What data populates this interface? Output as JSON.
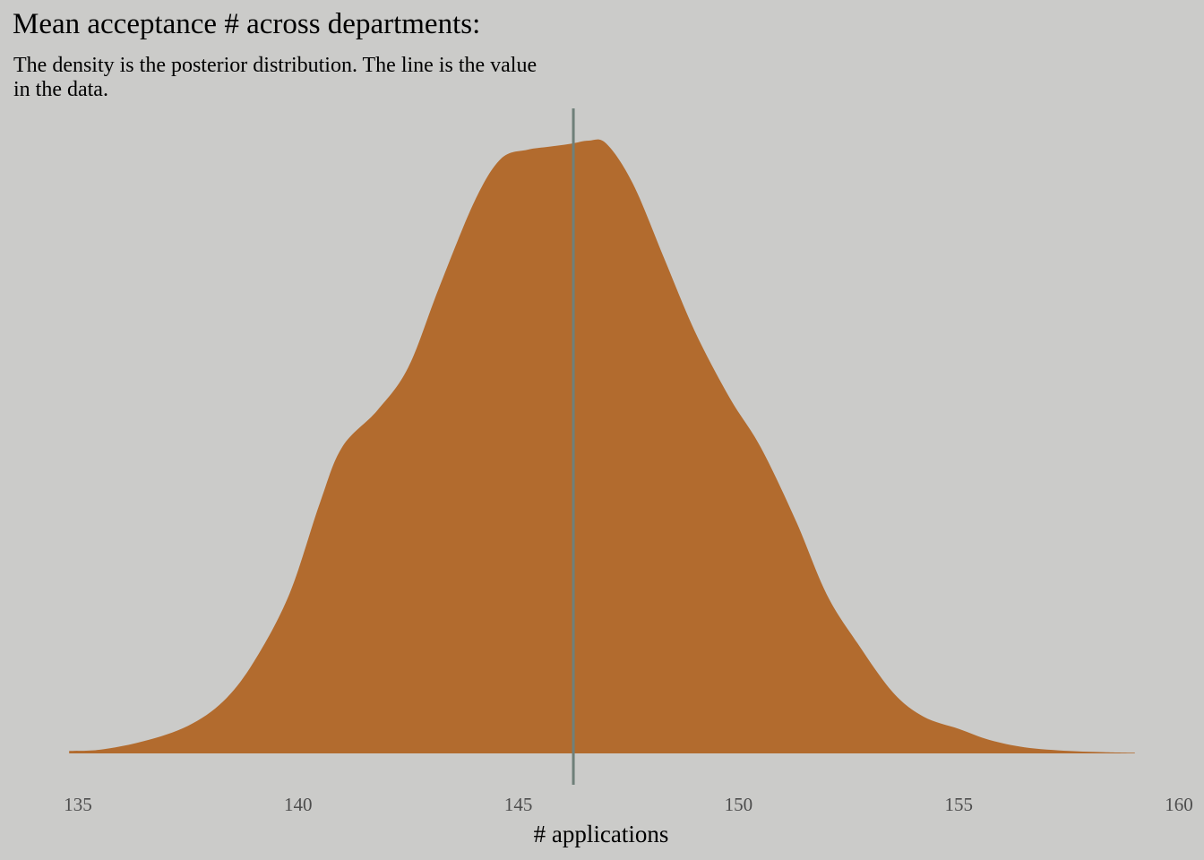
{
  "chart_data": {
    "type": "area",
    "title": "Mean acceptance # across departments:",
    "subtitle": "The density is the posterior distribution. The line is the value in the data.",
    "xlabel": "# applications",
    "ylabel": "",
    "xlim": [
      135,
      160
    ],
    "x_ticks": [
      135,
      140,
      145,
      150,
      155,
      160
    ],
    "x_tick_labels": [
      "135",
      "140",
      "145",
      "150",
      "155",
      "160"
    ],
    "grid": false,
    "density": {
      "x": [
        134.8,
        135.5,
        136.5,
        137.5,
        138.3,
        139.0,
        139.8,
        140.5,
        141.0,
        141.8,
        142.5,
        143.2,
        144.0,
        144.6,
        145.2,
        145.7,
        146.2,
        146.6,
        147.0,
        147.6,
        148.3,
        149.0,
        149.8,
        150.5,
        151.3,
        152.0,
        152.7,
        153.5,
        154.2,
        155.0,
        155.7,
        156.5,
        157.5,
        158.3,
        159.0
      ],
      "y": [
        0.004,
        0.006,
        0.02,
        0.045,
        0.085,
        0.15,
        0.26,
        0.41,
        0.5,
        0.56,
        0.63,
        0.76,
        0.9,
        0.97,
        0.985,
        0.99,
        0.995,
        1.0,
        0.995,
        0.93,
        0.81,
        0.69,
        0.58,
        0.5,
        0.38,
        0.26,
        0.18,
        0.1,
        0.06,
        0.04,
        0.022,
        0.01,
        0.004,
        0.002,
        0.001
      ]
    },
    "reference_line": {
      "x": 146.25
    },
    "colors": {
      "fill": "#b26b2e",
      "line": "#6f8079",
      "background": "#cbcbc9"
    }
  }
}
